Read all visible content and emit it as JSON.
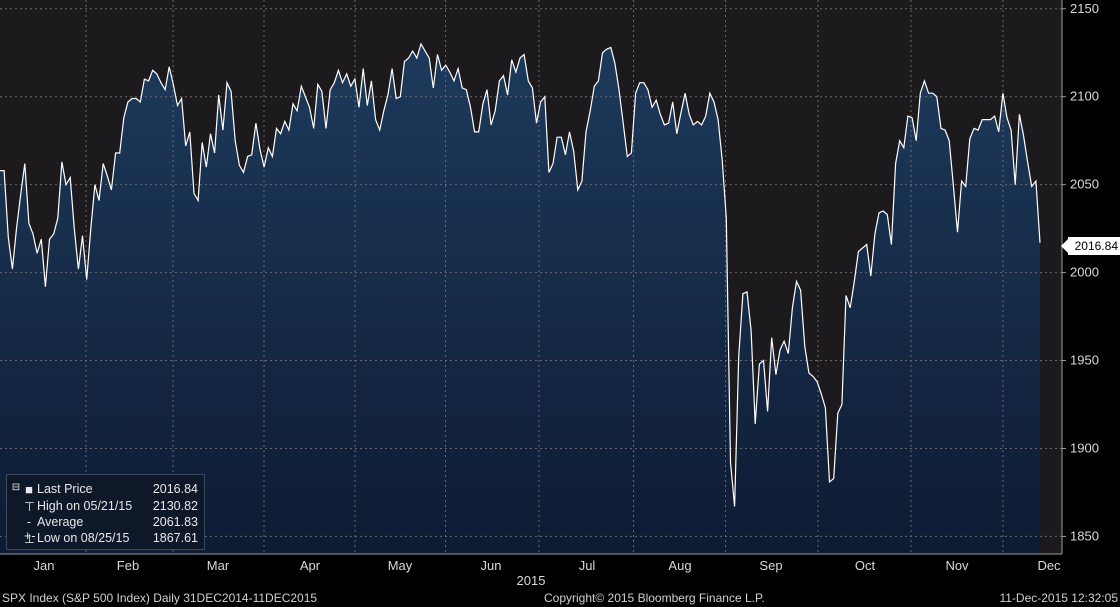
{
  "chart_data": {
    "type": "area",
    "instrument": "SPX Index (S&P 500 Index)",
    "frequency": "Daily",
    "range_label": "31DEC2014-11DEC2015",
    "xlabel": "2015",
    "ylim": [
      1840,
      2155
    ],
    "y_ticks": [
      1850,
      1900,
      1950,
      2000,
      2050,
      2100,
      2150
    ],
    "months": [
      "Jan",
      "Feb",
      "Mar",
      "Apr",
      "May",
      "Jun",
      "Jul",
      "Aug",
      "Sep",
      "Oct",
      "Nov",
      "Dec"
    ],
    "grid": true,
    "series": [
      {
        "values": [
          2058,
          2058,
          2020,
          2002,
          2025,
          2044,
          2062,
          2028,
          2022,
          2011,
          2019,
          1992,
          2019,
          2022,
          2031,
          2063,
          2050,
          2054,
          2025,
          2002,
          2021,
          1996,
          2025,
          2050,
          2041,
          2062,
          2055,
          2047,
          2068,
          2068,
          2088,
          2097,
          2099,
          2099,
          2097,
          2110,
          2109,
          2115,
          2113,
          2108,
          2104,
          2117,
          2107,
          2095,
          2099,
          2072,
          2080,
          2045,
          2041,
          2074,
          2060,
          2079,
          2068,
          2101,
          2081,
          2108,
          2103,
          2075,
          2061,
          2057,
          2066,
          2067,
          2085,
          2070,
          2060,
          2071,
          2066,
          2082,
          2079,
          2086,
          2081,
          2096,
          2092,
          2106,
          2100,
          2094,
          2082,
          2107,
          2103,
          2082,
          2104,
          2108,
          2115,
          2108,
          2113,
          2106,
          2110,
          2094,
          2116,
          2095,
          2109,
          2087,
          2081,
          2092,
          2101,
          2116,
          2099,
          2100,
          2120,
          2122,
          2126,
          2122,
          2130,
          2126,
          2122,
          2105,
          2124,
          2115,
          2118,
          2114,
          2109,
          2116,
          2105,
          2104,
          2094,
          2080,
          2080,
          2096,
          2104,
          2084,
          2092,
          2109,
          2112,
          2101,
          2121,
          2114,
          2122,
          2124,
          2109,
          2105,
          2085,
          2097,
          2100,
          2057,
          2062,
          2077,
          2077,
          2067,
          2080,
          2069,
          2047,
          2052,
          2080,
          2092,
          2106,
          2109,
          2125,
          2127,
          2128,
          2119,
          2104,
          2085,
          2066,
          2068,
          2102,
          2108,
          2108,
          2104,
          2094,
          2098,
          2090,
          2084,
          2085,
          2097,
          2079,
          2091,
          2102,
          2090,
          2084,
          2086,
          2084,
          2089,
          2102,
          2097,
          2087,
          2064,
          2031,
          1892,
          1867,
          1952,
          1988,
          1989,
          1967,
          1914,
          1948,
          1950,
          1921,
          1963,
          1942,
          1956,
          1961,
          1954,
          1980,
          1995,
          1990,
          1958,
          1943,
          1941,
          1938,
          1931,
          1923,
          1881,
          1883,
          1920,
          1925,
          1987,
          1980,
          1995,
          2012,
          2014,
          2016,
          1998,
          2022,
          2034,
          2035,
          2033,
          2016,
          2062,
          2075,
          2071,
          2089,
          2088,
          2075,
          2102,
          2109,
          2102,
          2102,
          2100,
          2082,
          2081,
          2075,
          2050,
          2023,
          2052,
          2049,
          2076,
          2082,
          2081,
          2087,
          2087,
          2087,
          2089,
          2080,
          2102,
          2088,
          2081,
          2050,
          2090,
          2078,
          2063,
          2049,
          2052,
          2017
        ]
      }
    ]
  },
  "legend": {
    "items": [
      {
        "label": "Last Price",
        "value": "2016.84"
      },
      {
        "label": "High on 05/21/15",
        "value": "2130.82"
      },
      {
        "label": "Average",
        "value": "2061.83"
      },
      {
        "label": "Low on 08/25/15",
        "value": "1867.61"
      }
    ]
  },
  "last_price_tag": "2016.84",
  "footer": {
    "left": "SPX Index (S&P 500 Index)  Daily 31DEC2014-11DEC2015",
    "center": "Copyright© 2015 Bloomberg Finance L.P.",
    "right": "11-Dec-2015 12:32:05"
  },
  "colors": {
    "plot_background": "#1c1a1d",
    "area_top": "#1d3a5c",
    "area_bottom": "#0e1b33",
    "line": "#ffffff",
    "grid": "#6a6a6a"
  }
}
